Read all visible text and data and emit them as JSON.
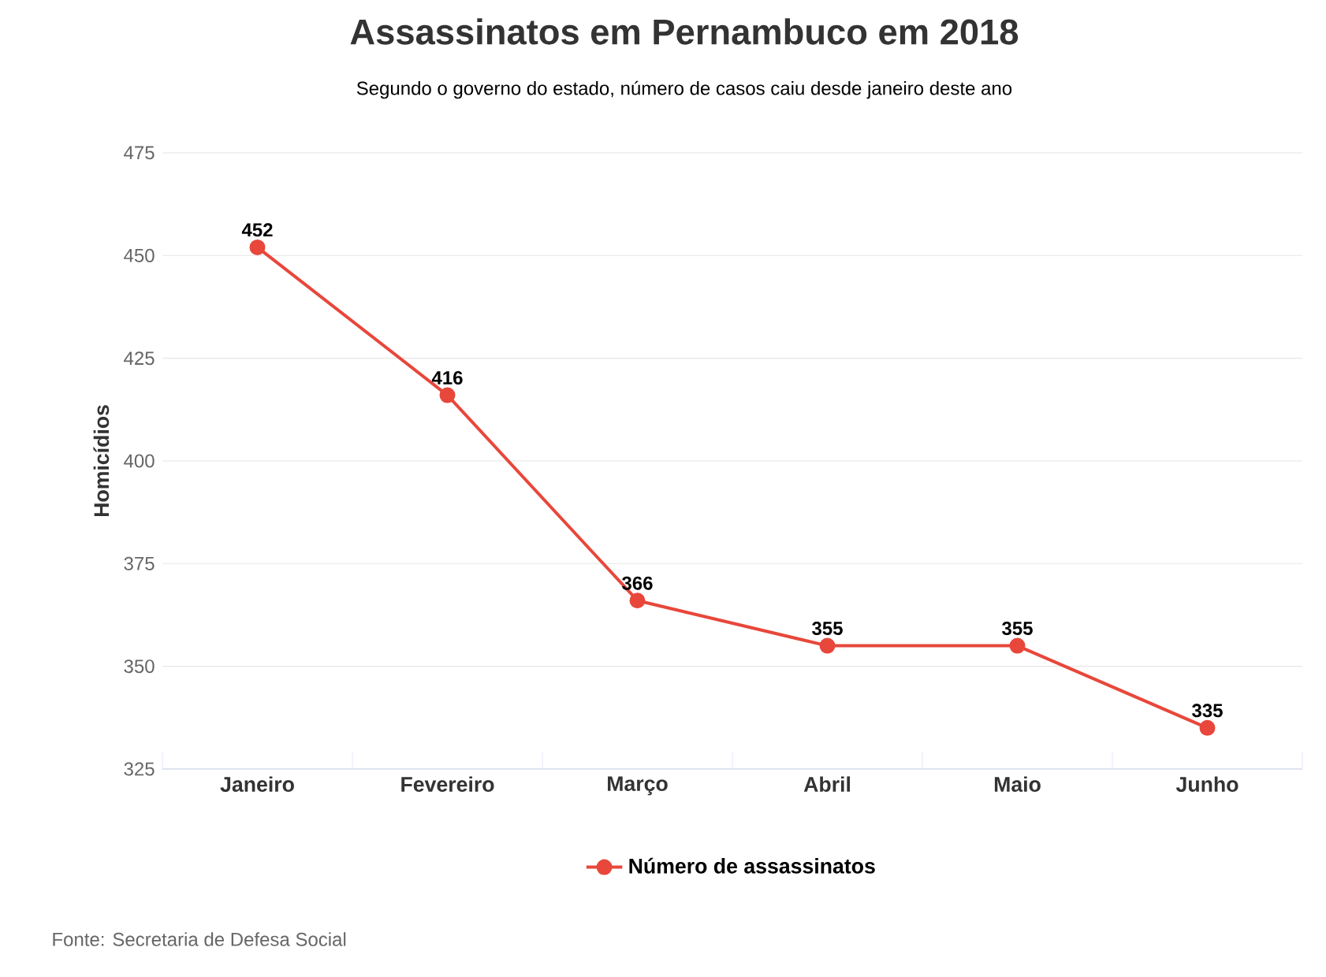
{
  "chart_data": {
    "type": "line",
    "title": "Assassinatos em Pernambuco em 2018",
    "subtitle": "Segundo o governo do estado, número de casos caiu desde janeiro deste ano",
    "ylabel": "Homicídios",
    "categories": [
      "Janeiro",
      "Fevereiro",
      "Março",
      "Abril",
      "Maio",
      "Junho"
    ],
    "series": [
      {
        "name": "Número de assassinatos",
        "color": "#e8473b",
        "values": [
          452,
          416,
          366,
          355,
          355,
          335
        ]
      }
    ],
    "ylim": [
      325,
      475
    ],
    "yticks": [
      325,
      350,
      375,
      400,
      425,
      450,
      475
    ],
    "grid": "y",
    "legend": "bottom",
    "marker": "circle",
    "line_style": "solid",
    "data_labels": true,
    "annotations": [
      "Fonte: Secretaria de Defesa Social"
    ]
  }
}
